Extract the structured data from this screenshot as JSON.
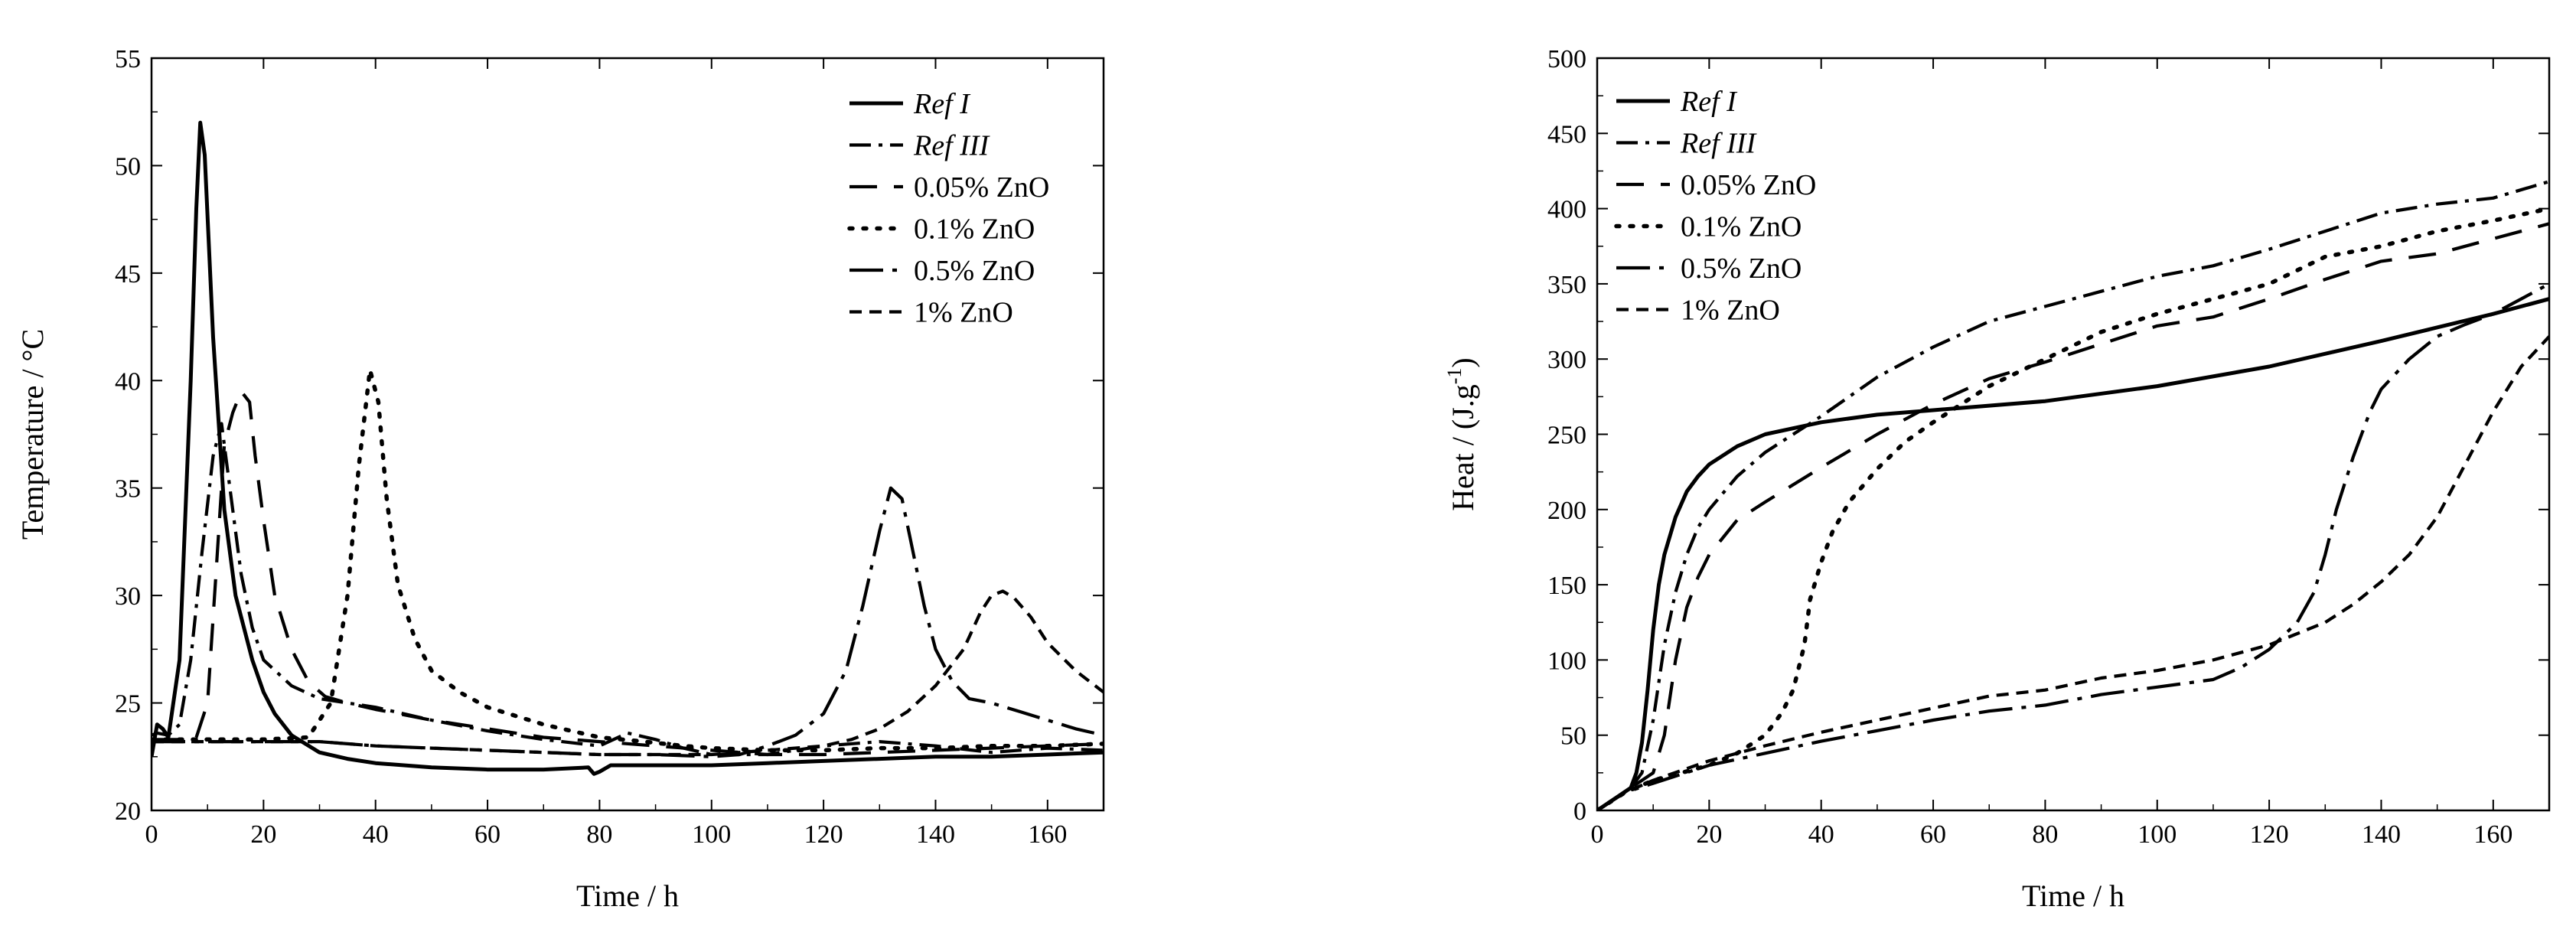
{
  "chart_data": [
    {
      "type": "line",
      "xlabel": "Time / h",
      "ylabel": "Temperature / °C",
      "xlim": [
        0,
        170
      ],
      "ylim": [
        20,
        55
      ],
      "xticks": [
        0,
        20,
        40,
        60,
        80,
        100,
        120,
        140,
        160
      ],
      "yticks": [
        20,
        25,
        30,
        35,
        40,
        45,
        50,
        55
      ],
      "legend_position": "top-right",
      "series": [
        {
          "name": "Ref I",
          "italic": true,
          "dash": "solid",
          "x": [
            0,
            1,
            2,
            3,
            5,
            7,
            8,
            8.7,
            9.5,
            11,
            13,
            15,
            18,
            20,
            22,
            25,
            30,
            35,
            40,
            50,
            60,
            70,
            78,
            79,
            80,
            82,
            90,
            100,
            110,
            120,
            130,
            140,
            150,
            160,
            170
          ],
          "y": [
            22.5,
            24.0,
            23.8,
            23.4,
            27,
            40,
            48,
            52,
            50.5,
            42,
            34,
            30,
            27,
            25.5,
            24.5,
            23.5,
            22.7,
            22.4,
            22.2,
            22.0,
            21.9,
            21.9,
            22.0,
            21.7,
            21.8,
            22.1,
            22.1,
            22.1,
            22.2,
            22.3,
            22.4,
            22.5,
            22.5,
            22.6,
            22.7
          ]
        },
        {
          "name": "Ref III",
          "italic": true,
          "dash": "dashdot",
          "x": [
            0,
            1,
            3,
            5,
            7,
            9,
            11,
            12.5,
            14,
            16,
            18,
            20,
            25,
            30,
            40,
            50,
            60,
            70,
            80,
            85,
            90,
            95,
            100,
            110,
            120,
            130,
            140,
            150,
            160,
            170
          ],
          "y": [
            23.5,
            23.6,
            23.5,
            24,
            27,
            32,
            36.5,
            38,
            35,
            31,
            28.5,
            27,
            25.8,
            25.2,
            24.8,
            24.2,
            23.7,
            23.3,
            23.0,
            23.6,
            23.3,
            22.9,
            22.6,
            22.6,
            23.0,
            23.2,
            23.0,
            22.7,
            22.9,
            22.8
          ]
        },
        {
          "name": "0.05% ZnO",
          "italic": false,
          "dash": "longdash",
          "x": [
            0,
            2,
            5,
            8,
            10,
            11.5,
            13,
            14.5,
            16,
            17.5,
            18.5,
            20,
            22,
            25,
            28,
            31,
            35,
            40,
            50,
            60,
            70,
            80,
            90,
            100,
            110,
            120,
            130,
            140,
            150,
            160,
            170
          ],
          "y": [
            23.3,
            23.3,
            23.3,
            23.4,
            25,
            31,
            37,
            38.5,
            39.5,
            39,
            36.5,
            33.5,
            30,
            27.5,
            26,
            25.3,
            25.0,
            24.7,
            24.2,
            23.8,
            23.4,
            23.2,
            23.0,
            22.8,
            22.6,
            22.6,
            22.7,
            22.8,
            22.9,
            23.0,
            23.1
          ]
        },
        {
          "name": "0.1% ZnO",
          "italic": false,
          "dash": "dotted",
          "x": [
            0,
            10,
            20,
            28,
            32,
            35,
            37,
            39,
            40.5,
            42,
            44,
            47,
            50,
            55,
            60,
            70,
            80,
            88,
            95,
            100,
            110,
            120,
            130,
            140,
            150,
            160,
            170
          ],
          "y": [
            23.3,
            23.3,
            23.3,
            23.4,
            25,
            30,
            36,
            40.5,
            39,
            34.5,
            30.5,
            28,
            26.5,
            25.5,
            24.8,
            24.0,
            23.4,
            23.2,
            23.0,
            22.9,
            22.8,
            22.8,
            22.9,
            22.9,
            23.0,
            23.0,
            23.1
          ]
        },
        {
          "name": "0.5% ZnO",
          "italic": false,
          "dash": "dashdotlong",
          "x": [
            0,
            10,
            20,
            30,
            40,
            50,
            60,
            70,
            80,
            90,
            100,
            105,
            110,
            115,
            120,
            124,
            127,
            130,
            132,
            134,
            136,
            138,
            140,
            143,
            146,
            150,
            155,
            160,
            165,
            170
          ],
          "y": [
            23.2,
            23.2,
            23.2,
            23.2,
            23.0,
            22.9,
            22.8,
            22.7,
            22.6,
            22.6,
            22.5,
            22.6,
            23.0,
            23.5,
            24.5,
            26.5,
            29.5,
            33,
            35,
            34.5,
            32,
            29.5,
            27.5,
            26,
            25.2,
            25.0,
            24.6,
            24.2,
            23.8,
            23.5
          ]
        },
        {
          "name": "1% ZnO",
          "italic": false,
          "dash": "shortdash",
          "x": [
            0,
            10,
            20,
            30,
            40,
            50,
            60,
            70,
            80,
            90,
            100,
            110,
            120,
            125,
            130,
            135,
            140,
            145,
            148,
            150,
            152,
            154,
            157,
            160,
            165,
            170
          ],
          "y": [
            23.2,
            23.2,
            23.2,
            23.2,
            23.0,
            22.9,
            22.8,
            22.7,
            22.6,
            22.6,
            22.6,
            22.8,
            23.0,
            23.3,
            23.8,
            24.6,
            25.8,
            27.5,
            29.2,
            30.0,
            30.2,
            29.9,
            29.0,
            27.8,
            26.5,
            25.5
          ]
        }
      ]
    },
    {
      "type": "line",
      "xlabel": "Time / h",
      "ylabel_main": "Heat / (J.g",
      "ylabel_sup": "-1",
      "ylabel_end": ")",
      "xlim": [
        0,
        170
      ],
      "ylim": [
        0,
        500
      ],
      "xticks": [
        0,
        20,
        40,
        60,
        80,
        100,
        120,
        140,
        160
      ],
      "yticks": [
        0,
        50,
        100,
        150,
        200,
        250,
        300,
        350,
        400,
        450,
        500
      ],
      "legend_position": "top-left",
      "series": [
        {
          "name": "Ref I",
          "italic": true,
          "dash": "solid",
          "x": [
            0,
            2,
            4,
            6,
            7,
            8,
            9,
            10,
            11,
            12,
            14,
            16,
            18,
            20,
            25,
            30,
            40,
            50,
            60,
            80,
            100,
            120,
            140,
            160,
            170
          ],
          "y": [
            0,
            5,
            10,
            15,
            25,
            45,
            80,
            120,
            150,
            170,
            195,
            212,
            222,
            230,
            242,
            250,
            258,
            263,
            266,
            272,
            282,
            295,
            312,
            330,
            340
          ]
        },
        {
          "name": "Ref III",
          "italic": true,
          "dash": "dashdot",
          "x": [
            0,
            2,
            4,
            6,
            8,
            10,
            12,
            14,
            16,
            18,
            20,
            25,
            30,
            35,
            40,
            50,
            60,
            70,
            80,
            90,
            100,
            110,
            120,
            130,
            140,
            150,
            160,
            170
          ],
          "y": [
            0,
            5,
            10,
            15,
            25,
            60,
            110,
            145,
            170,
            188,
            200,
            222,
            238,
            250,
            262,
            288,
            308,
            325,
            335,
            345,
            355,
            362,
            373,
            385,
            397,
            403,
            407,
            418
          ]
        },
        {
          "name": "0.05% ZnO",
          "italic": false,
          "dash": "longdash",
          "x": [
            0,
            2,
            4,
            6,
            8,
            10,
            12,
            14,
            16,
            18,
            20,
            25,
            30,
            40,
            50,
            60,
            70,
            80,
            90,
            100,
            110,
            120,
            130,
            140,
            150,
            160,
            170
          ],
          "y": [
            0,
            5,
            10,
            15,
            20,
            25,
            50,
            100,
            135,
            155,
            170,
            193,
            205,
            228,
            250,
            270,
            287,
            298,
            310,
            322,
            328,
            340,
            353,
            365,
            370,
            380,
            390
          ]
        },
        {
          "name": "0.1% ZnO",
          "italic": false,
          "dash": "dotted",
          "x": [
            0,
            5,
            10,
            15,
            20,
            25,
            30,
            33,
            35,
            37,
            38,
            40,
            42,
            45,
            50,
            55,
            60,
            70,
            80,
            90,
            100,
            110,
            120,
            130,
            140,
            150,
            160,
            170
          ],
          "y": [
            0,
            12,
            20,
            25,
            30,
            38,
            50,
            65,
            80,
            110,
            140,
            165,
            185,
            205,
            227,
            245,
            258,
            282,
            300,
            318,
            330,
            340,
            350,
            368,
            375,
            385,
            392,
            400
          ]
        },
        {
          "name": "0.5% ZnO",
          "italic": false,
          "dash": "dashdotlong",
          "x": [
            0,
            5,
            10,
            20,
            30,
            40,
            50,
            60,
            70,
            80,
            90,
            100,
            110,
            115,
            120,
            125,
            128,
            130,
            132,
            135,
            138,
            140,
            145,
            150,
            155,
            160,
            165,
            170
          ],
          "y": [
            0,
            12,
            18,
            30,
            38,
            46,
            53,
            60,
            66,
            70,
            77,
            82,
            87,
            95,
            107,
            125,
            145,
            170,
            200,
            235,
            265,
            280,
            300,
            315,
            323,
            330,
            340,
            350
          ]
        },
        {
          "name": "1% ZnO",
          "italic": false,
          "dash": "shortdash",
          "x": [
            0,
            5,
            10,
            20,
            30,
            40,
            50,
            60,
            70,
            80,
            90,
            100,
            110,
            120,
            130,
            135,
            140,
            145,
            150,
            155,
            160,
            165,
            170
          ],
          "y": [
            0,
            12,
            20,
            33,
            43,
            52,
            60,
            68,
            76,
            80,
            88,
            93,
            100,
            110,
            125,
            137,
            152,
            170,
            195,
            230,
            265,
            295,
            315
          ]
        }
      ]
    }
  ]
}
